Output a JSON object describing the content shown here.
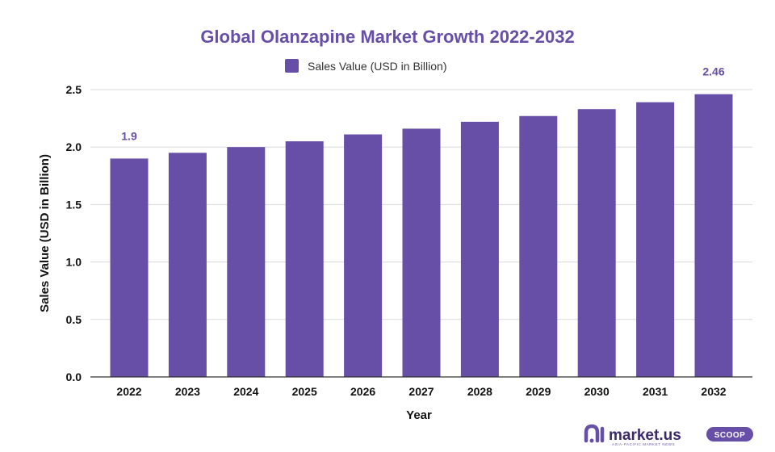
{
  "colors": {
    "bar": "#674ea7",
    "title": "#674ea7",
    "grid": "#d9d9d9",
    "axis": "#333333",
    "brand": "#3b2a6b"
  },
  "chart_data": {
    "type": "bar",
    "title": "Global Olanzapine Market Growth 2022-2032",
    "xlabel": "Year",
    "ylabel": "Sales Value (USD in Billion)",
    "ylim": [
      0,
      2.5
    ],
    "yticks": [
      "0.0",
      "0.5",
      "1.0",
      "1.5",
      "2.0",
      "2.5"
    ],
    "grid": true,
    "legend_position": "top-center",
    "categories": [
      "2022",
      "2023",
      "2024",
      "2025",
      "2026",
      "2027",
      "2028",
      "2029",
      "2030",
      "2031",
      "2032"
    ],
    "series": [
      {
        "name": "Sales Value (USD in Billion)",
        "values": [
          1.9,
          1.95,
          2.0,
          2.05,
          2.11,
          2.16,
          2.22,
          2.27,
          2.33,
          2.39,
          2.46
        ]
      }
    ],
    "data_labels": [
      {
        "index": 0,
        "text": "1.9"
      },
      {
        "index": 10,
        "text": "2.46"
      }
    ]
  },
  "branding": {
    "logo_text": "market.us",
    "tagline": "ASIA-PACIFIC MARKET NEWS",
    "badge": "SCOOP"
  }
}
